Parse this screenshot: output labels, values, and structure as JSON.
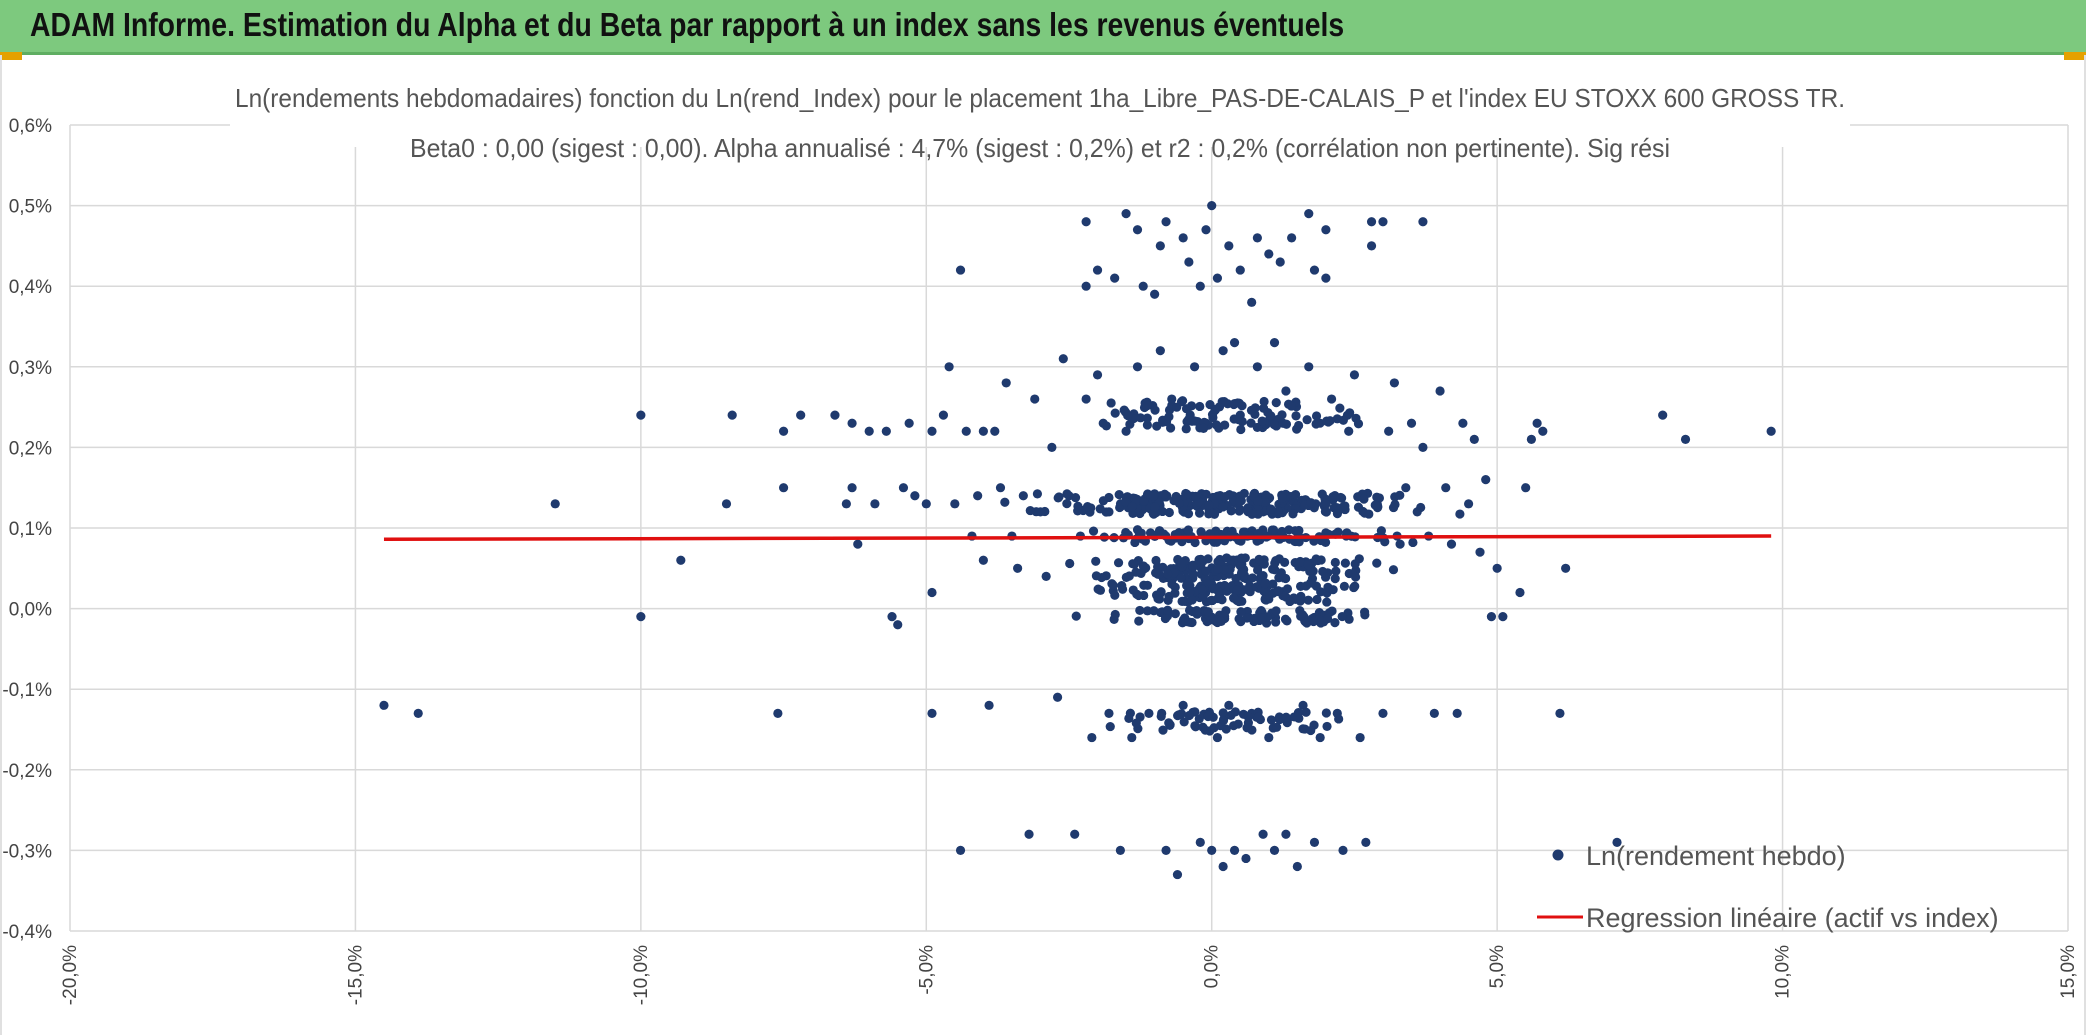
{
  "header": {
    "title": "ADAM Informe. Estimation du Alpha et du Beta par rapport à un index sans les revenus éventuels"
  },
  "colors": {
    "banner": "#7dc97e",
    "points": "#1f3a6e",
    "regression": "#e01010",
    "grid": "#d9d9d9"
  },
  "chart_data": {
    "type": "scatter",
    "title": "Ln(rendements hebdomadaires) fonction du Ln(rend_Index) pour le placement 1ha_Libre_PAS-DE-CALAIS_P et l'index EU STOXX 600 GROSS TR.",
    "subtitle": "Beta0 : 0,00 (sigest : 0,00). Alpha annualisé : 4,7% (sigest : 0,2%) et r2 : 0,2% (corrélation non pertinente). Sig rési",
    "xlabel": "",
    "ylabel": "",
    "xlim": [
      -0.2,
      0.15
    ],
    "ylim": [
      -0.004,
      0.006
    ],
    "x_ticks": [
      -0.2,
      -0.15,
      -0.1,
      -0.05,
      0.0,
      0.05,
      0.1,
      0.15
    ],
    "x_tick_labels": [
      "-20,0%",
      "-15,0%",
      "-10,0%",
      "-5,0%",
      "0,0%",
      "5,0%",
      "10,0%",
      "15,0%"
    ],
    "y_ticks": [
      -0.004,
      -0.003,
      -0.002,
      -0.001,
      0.0,
      0.001,
      0.002,
      0.003,
      0.004,
      0.005,
      0.006
    ],
    "y_tick_labels": [
      "-0,4%",
      "-0,3%",
      "-0,2%",
      "-0,1%",
      "0,0%",
      "0,1%",
      "0,2%",
      "0,3%",
      "0,4%",
      "0,5%",
      "0,6%"
    ],
    "grid": true,
    "legend_position": "bottom-right",
    "series": [
      {
        "name": "Ln(rendement hebdo)",
        "kind": "scatter",
        "points": [
          [
            -0.145,
            -0.0012
          ],
          [
            -0.139,
            -0.0013
          ],
          [
            -0.115,
            0.0013
          ],
          [
            -0.1,
            0.0024
          ],
          [
            -0.1,
            -0.0001
          ],
          [
            -0.093,
            0.0006
          ],
          [
            -0.084,
            0.0024
          ],
          [
            -0.085,
            0.0013
          ],
          [
            -0.076,
            -0.0013
          ],
          [
            -0.075,
            0.0022
          ],
          [
            -0.075,
            0.0015
          ],
          [
            -0.072,
            0.0024
          ],
          [
            -0.066,
            0.0024
          ],
          [
            -0.064,
            0.0013
          ],
          [
            -0.063,
            0.0023
          ],
          [
            -0.063,
            0.0015
          ],
          [
            -0.062,
            0.0008
          ],
          [
            -0.06,
            0.0022
          ],
          [
            -0.059,
            0.0013
          ],
          [
            -0.057,
            0.0022
          ],
          [
            -0.056,
            -0.0001
          ],
          [
            -0.055,
            -0.0002
          ],
          [
            -0.054,
            0.0015
          ],
          [
            -0.053,
            0.0023
          ],
          [
            -0.052,
            0.0014
          ],
          [
            -0.05,
            0.0013
          ],
          [
            -0.049,
            0.0022
          ],
          [
            -0.049,
            0.0002
          ],
          [
            -0.049,
            -0.0013
          ],
          [
            -0.047,
            0.0024
          ],
          [
            -0.046,
            0.003
          ],
          [
            -0.045,
            0.0013
          ],
          [
            -0.044,
            0.0042
          ],
          [
            -0.044,
            -0.003
          ],
          [
            -0.043,
            0.0022
          ],
          [
            -0.042,
            0.0009
          ],
          [
            -0.041,
            0.0014
          ],
          [
            -0.04,
            0.0022
          ],
          [
            -0.04,
            0.0006
          ],
          [
            -0.039,
            -0.0012
          ],
          [
            -0.038,
            0.0022
          ],
          [
            -0.037,
            0.0015
          ],
          [
            -0.036,
            0.0028
          ],
          [
            -0.035,
            0.0009
          ],
          [
            -0.034,
            0.0005
          ],
          [
            -0.033,
            0.0014
          ],
          [
            -0.032,
            -0.0028
          ],
          [
            -0.031,
            0.0026
          ],
          [
            -0.03,
            0.0012
          ],
          [
            -0.029,
            0.0004
          ],
          [
            -0.028,
            0.002
          ],
          [
            -0.027,
            -0.0011
          ],
          [
            -0.026,
            0.0031
          ],
          [
            -0.025,
            0.0014
          ],
          [
            -0.024,
            -0.0028
          ],
          [
            -0.023,
            0.0009
          ],
          [
            -0.022,
            0.0026
          ],
          [
            -0.022,
            0.004
          ],
          [
            -0.022,
            0.0048
          ],
          [
            -0.021,
            -0.0016
          ],
          [
            -0.02,
            0.0042
          ],
          [
            -0.02,
            0.0029
          ],
          [
            -0.019,
            0.0023
          ],
          [
            -0.018,
            0.0012
          ],
          [
            -0.018,
            -0.0013
          ],
          [
            -0.017,
            0.0041
          ],
          [
            -0.016,
            -0.003
          ],
          [
            -0.015,
            0.0022
          ],
          [
            -0.015,
            0.0049
          ],
          [
            -0.014,
            -0.0016
          ],
          [
            -0.013,
            0.0047
          ],
          [
            -0.013,
            0.003
          ],
          [
            -0.012,
            0.004
          ],
          [
            -0.011,
            -0.0013
          ],
          [
            -0.01,
            0.0039
          ],
          [
            -0.009,
            0.0045
          ],
          [
            -0.009,
            0.0032
          ],
          [
            -0.008,
            -0.003
          ],
          [
            -0.008,
            0.0048
          ],
          [
            -0.007,
            0.0026
          ],
          [
            -0.006,
            -0.0033
          ],
          [
            -0.005,
            0.0046
          ],
          [
            -0.005,
            -0.0012
          ],
          [
            -0.004,
            0.0043
          ],
          [
            -0.003,
            0.003
          ],
          [
            -0.002,
            0.004
          ],
          [
            -0.002,
            -0.0029
          ],
          [
            -0.001,
            0.0047
          ],
          [
            -0.001,
            0.0023
          ],
          [
            0.0,
            0.005
          ],
          [
            0.0,
            -0.003
          ],
          [
            0.001,
            0.0041
          ],
          [
            0.001,
            -0.0016
          ],
          [
            0.002,
            0.0032
          ],
          [
            0.002,
            -0.0032
          ],
          [
            0.003,
            0.0045
          ],
          [
            0.003,
            -0.0012
          ],
          [
            0.004,
            0.0033
          ],
          [
            0.004,
            -0.003
          ],
          [
            0.005,
            0.0042
          ],
          [
            0.005,
            0.0024
          ],
          [
            0.006,
            -0.0031
          ],
          [
            0.007,
            0.0038
          ],
          [
            0.007,
            -0.0013
          ],
          [
            0.008,
            0.0046
          ],
          [
            0.008,
            0.003
          ],
          [
            0.009,
            -0.0028
          ],
          [
            0.01,
            0.0044
          ],
          [
            0.01,
            -0.0016
          ],
          [
            0.011,
            0.0033
          ],
          [
            0.011,
            -0.003
          ],
          [
            0.012,
            0.0043
          ],
          [
            0.013,
            -0.0028
          ],
          [
            0.013,
            0.0027
          ],
          [
            0.014,
            0.0046
          ],
          [
            0.015,
            -0.0032
          ],
          [
            0.016,
            -0.0012
          ],
          [
            0.017,
            0.0049
          ],
          [
            0.017,
            0.003
          ],
          [
            0.018,
            0.0042
          ],
          [
            0.018,
            -0.0029
          ],
          [
            0.019,
            -0.0016
          ],
          [
            0.02,
            0.0041
          ],
          [
            0.02,
            0.0047
          ],
          [
            0.021,
            0.0026
          ],
          [
            0.022,
            -0.0013
          ],
          [
            0.023,
            -0.003
          ],
          [
            0.024,
            0.0022
          ],
          [
            0.025,
            0.0029
          ],
          [
            0.026,
            -0.0016
          ],
          [
            0.027,
            -0.0029
          ],
          [
            0.028,
            0.0048
          ],
          [
            0.028,
            0.0045
          ],
          [
            0.029,
            0.0013
          ],
          [
            0.03,
            -0.0013
          ],
          [
            0.03,
            0.0048
          ],
          [
            0.031,
            0.0022
          ],
          [
            0.032,
            0.0028
          ],
          [
            0.033,
            0.0008
          ],
          [
            0.034,
            0.0015
          ],
          [
            0.035,
            0.0023
          ],
          [
            0.036,
            0.0012
          ],
          [
            0.037,
            0.0048
          ],
          [
            0.037,
            0.002
          ],
          [
            0.038,
            0.0009
          ],
          [
            0.039,
            -0.0013
          ],
          [
            0.04,
            0.0027
          ],
          [
            0.041,
            0.0015
          ],
          [
            0.042,
            0.0008
          ],
          [
            0.043,
            -0.0013
          ],
          [
            0.044,
            0.0023
          ],
          [
            0.045,
            0.0013
          ],
          [
            0.046,
            0.0021
          ],
          [
            0.047,
            0.0007
          ],
          [
            0.048,
            0.0016
          ],
          [
            0.049,
            -0.0001
          ],
          [
            0.05,
            0.0005
          ],
          [
            0.051,
            -0.0001
          ],
          [
            0.054,
            0.0002
          ],
          [
            0.055,
            0.0015
          ],
          [
            0.056,
            0.0021
          ],
          [
            0.057,
            0.0023
          ],
          [
            0.058,
            0.0022
          ],
          [
            0.061,
            -0.0013
          ],
          [
            0.062,
            0.0005
          ],
          [
            0.071,
            -0.0029
          ],
          [
            0.079,
            0.0024
          ],
          [
            0.083,
            0.0021
          ],
          [
            0.098,
            0.0022
          ]
        ]
      },
      {
        "name": "Regression linéaire (actif vs index)",
        "kind": "line",
        "points": [
          [
            -0.145,
            0.00086
          ],
          [
            0.098,
            0.0009
          ]
        ]
      }
    ]
  }
}
